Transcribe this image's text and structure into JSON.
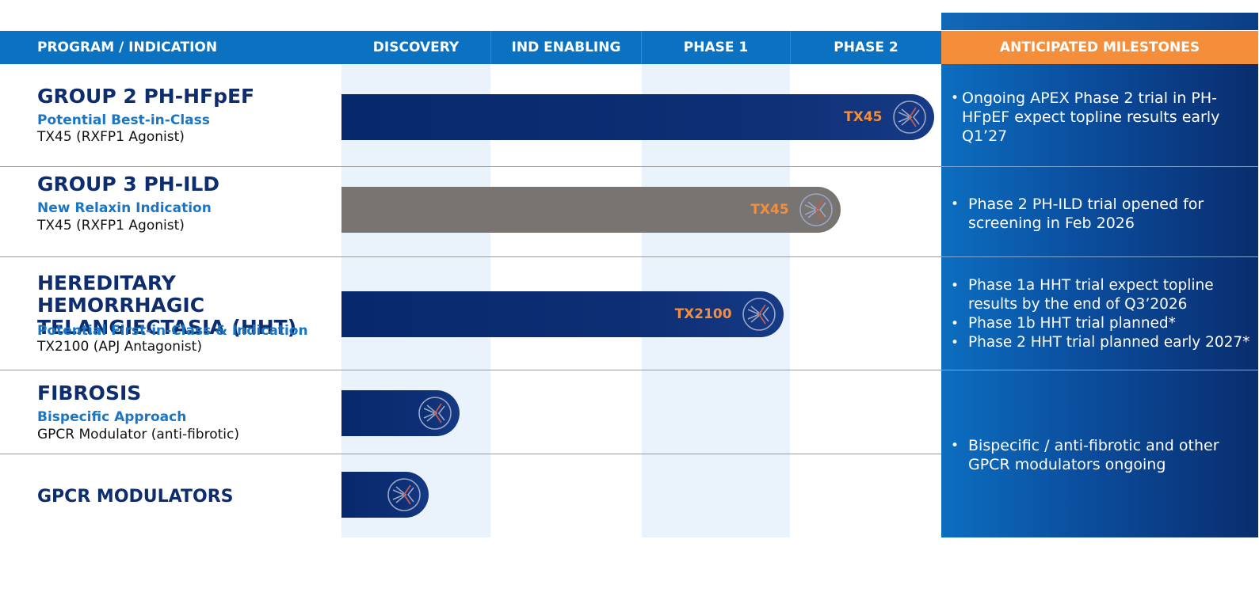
{
  "header": {
    "program": "PROGRAM / INDICATION",
    "phases": [
      "DISCOVERY",
      "IND ENABLING",
      "PHASE 1",
      "PHASE 2"
    ],
    "milestones": "ANTICIPATED MILESTONES"
  },
  "programs": [
    {
      "title": "GROUP 2 PH-HFpEF",
      "subtitle": "Potential Best-in-Class",
      "drug": "TX45 (RXFP1 Agonist)",
      "bar_label": "TX45"
    },
    {
      "title": "GROUP 3 PH-ILD",
      "subtitle": "New Relaxin Indication",
      "drug": "TX45 (RXFP1 Agonist)",
      "bar_label": "TX45"
    },
    {
      "title": "HEREDITARY HEMORRHAGIC TELANGIECTASIA (HHT)",
      "subtitle": "Potential First-in-Class & Indication",
      "drug": "TX2100 (APJ Antagonist)",
      "bar_label": "TX2100"
    },
    {
      "title": "FIBROSIS",
      "subtitle": "Bispecific Approach",
      "drug": "GPCR Modulator (anti-fibrotic)",
      "bar_label": ""
    },
    {
      "title": "GPCR MODULATORS",
      "subtitle": "",
      "drug": "",
      "bar_label": ""
    }
  ],
  "milestones": [
    [
      "Ongoing APEX Phase 2 trial in PH-HFpEF expect topline results early Q1’27"
    ],
    [
      "Phase 2 PH-ILD trial opened for screening in Feb 2026"
    ],
    [
      "Phase 1a HHT trial expect topline results by the end of Q3’2026",
      "Phase 1b HHT trial planned*",
      "Phase 2 HHT trial planned early 2027*"
    ],
    [
      "Bispecific / anti-fibrotic and other GPCR modulators ongoing"
    ]
  ],
  "chart_data": {
    "type": "bar",
    "orientation": "horizontal",
    "x_scale": "development stage",
    "stages": [
      "DISCOVERY",
      "IND ENABLING",
      "PHASE 1",
      "PHASE 2"
    ],
    "categories": [
      "GROUP 2 PH-HFpEF",
      "GROUP 3 PH-ILD",
      "HEREDITARY HEMORRHAGIC TELANGIECTASIA (HHT)",
      "FIBROSIS",
      "GPCR MODULATORS"
    ],
    "values": [
      3.95,
      3.33,
      2.95,
      0.79,
      0.58
    ],
    "bar_colors": [
      "#0a2d6e",
      "#787472",
      "#0a2d6e",
      "#0a2d6e",
      "#0a2d6e"
    ],
    "accent_color": "#f48e3b",
    "header_color": "#0a72c0"
  }
}
